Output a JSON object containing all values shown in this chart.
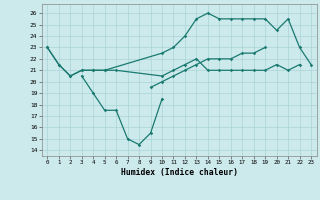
{
  "xlabel": "Humidex (Indice chaleur)",
  "bg_color": "#cce9ec",
  "line_color": "#1a7a70",
  "grid_color": "#aad4d8",
  "xlim": [
    -0.5,
    23.5
  ],
  "ylim": [
    13.5,
    26.8
  ],
  "yticks": [
    14,
    15,
    16,
    17,
    18,
    19,
    20,
    21,
    22,
    23,
    24,
    25,
    26
  ],
  "xticks": [
    0,
    1,
    2,
    3,
    4,
    5,
    6,
    7,
    8,
    9,
    10,
    11,
    12,
    13,
    14,
    15,
    16,
    17,
    18,
    19,
    20,
    21,
    22,
    23
  ],
  "lines": [
    {
      "x": [
        0,
        1,
        2,
        3,
        4,
        5,
        10,
        11,
        12,
        13,
        14,
        15,
        16,
        17,
        18,
        19,
        20,
        21,
        22,
        23
      ],
      "y": [
        23,
        21.5,
        20.5,
        21,
        21,
        21,
        22.5,
        23,
        24,
        25.5,
        26,
        25.5,
        25.5,
        25.5,
        25.5,
        25.5,
        24.5,
        25.5,
        23,
        21.5
      ]
    },
    {
      "x": [
        0,
        1,
        2,
        3,
        4,
        5,
        6,
        10,
        11,
        12,
        13,
        14,
        15,
        16,
        17,
        18,
        19,
        20,
        21,
        22
      ],
      "y": [
        23,
        21.5,
        20.5,
        21,
        21,
        21,
        21,
        20.5,
        21,
        21.5,
        22,
        21,
        21,
        21,
        21,
        21,
        21,
        21.5,
        21,
        21.5
      ]
    },
    {
      "x": [
        3,
        4,
        5,
        6,
        7,
        8,
        9,
        10
      ],
      "y": [
        20.5,
        19,
        17.5,
        17.5,
        15,
        14.5,
        15.5,
        18.5
      ]
    },
    {
      "x": [
        9,
        10,
        11,
        12,
        13,
        14,
        15,
        16,
        17,
        18,
        19
      ],
      "y": [
        19.5,
        20,
        20.5,
        21,
        21.5,
        22,
        22,
        22,
        22.5,
        22.5,
        23
      ]
    }
  ]
}
